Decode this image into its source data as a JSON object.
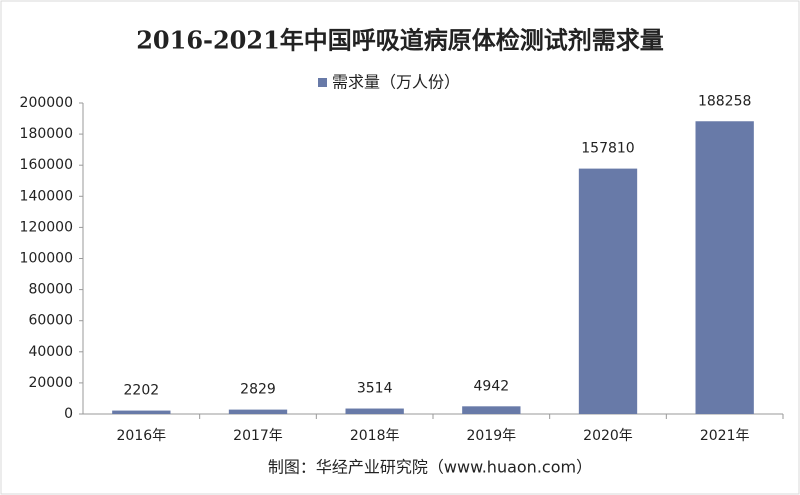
{
  "chart_data": {
    "type": "bar",
    "title": "2016-2021年中国呼吸道病原体检测试剂需求量",
    "categories": [
      "2016年",
      "2017年",
      "2018年",
      "2019年",
      "2020年",
      "2021年"
    ],
    "series": [
      {
        "name": "需求量（万人份）",
        "color": "#687aa8",
        "values": [
          2202,
          2829,
          3514,
          4942,
          157810,
          188258
        ]
      }
    ],
    "ylim": [
      0,
      200000
    ],
    "yticks": [
      0,
      20000,
      40000,
      60000,
      80000,
      100000,
      120000,
      140000,
      160000,
      180000,
      200000
    ],
    "legend": "top",
    "source": "制图：华经产业研究院（www.huaon.com）"
  }
}
